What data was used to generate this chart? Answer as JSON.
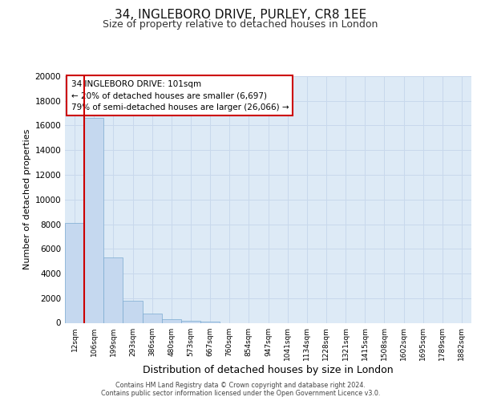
{
  "title1": "34, INGLEBORO DRIVE, PURLEY, CR8 1EE",
  "title2": "Size of property relative to detached houses in London",
  "xlabel": "Distribution of detached houses by size in London",
  "ylabel": "Number of detached properties",
  "categories": [
    "12sqm",
    "106sqm",
    "199sqm",
    "293sqm",
    "386sqm",
    "480sqm",
    "573sqm",
    "667sqm",
    "760sqm",
    "854sqm",
    "947sqm",
    "1041sqm",
    "1134sqm",
    "1228sqm",
    "1321sqm",
    "1415sqm",
    "1508sqm",
    "1602sqm",
    "1695sqm",
    "1789sqm",
    "1882sqm"
  ],
  "values": [
    8100,
    16600,
    5300,
    1800,
    750,
    280,
    160,
    90,
    0,
    0,
    0,
    0,
    0,
    0,
    0,
    0,
    0,
    0,
    0,
    0,
    0
  ],
  "bar_color": "#c5d8ef",
  "bar_edge_color": "#7aaad0",
  "vline_color": "#cc0000",
  "vline_x": 1.0,
  "annotation_line1": "34 INGLEBORO DRIVE: 101sqm",
  "annotation_line2": "← 20% of detached houses are smaller (6,697)",
  "annotation_line3": "79% of semi-detached houses are larger (26,066) →",
  "annotation_box_edge_color": "#cc0000",
  "ylim": [
    0,
    20000
  ],
  "yticks": [
    0,
    2000,
    4000,
    6000,
    8000,
    10000,
    12000,
    14000,
    16000,
    18000,
    20000
  ],
  "grid_color": "#c8d8ec",
  "bg_color": "#ddeaf6",
  "footer1": "Contains HM Land Registry data © Crown copyright and database right 2024.",
  "footer2": "Contains public sector information licensed under the Open Government Licence v3.0."
}
